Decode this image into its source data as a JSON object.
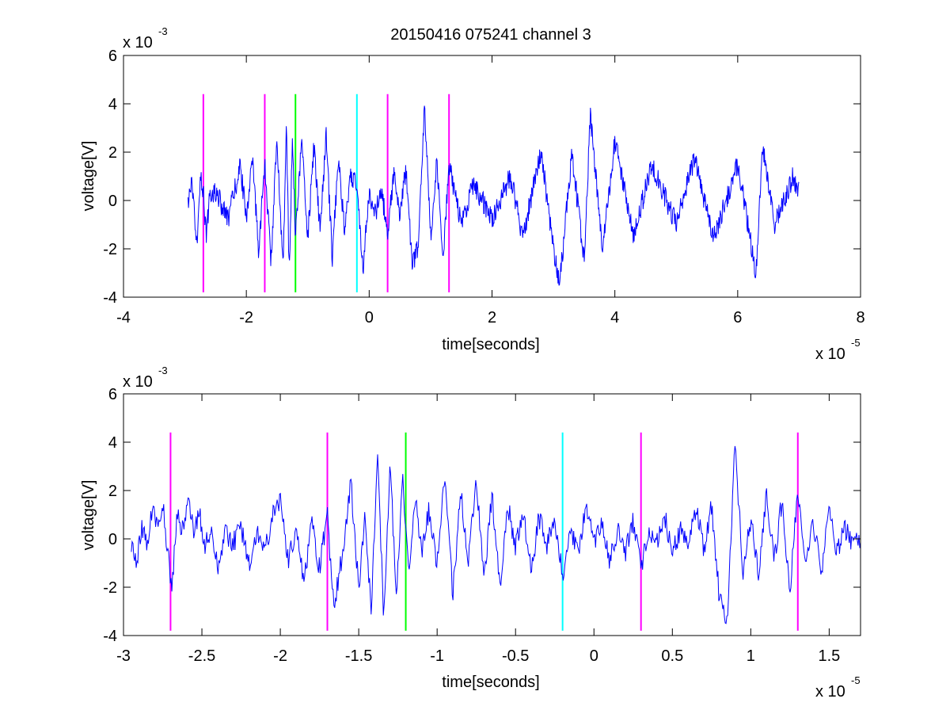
{
  "chart_data": [
    {
      "type": "line",
      "title": "20150416 075241 channel 3",
      "xlabel": "time[seconds]",
      "ylabel": "voltage[V]",
      "x_exponent_label": "x 10",
      "x_exponent": "-5",
      "y_exponent_label": "x 10",
      "y_exponent": "-3",
      "xlim": [
        -4,
        8
      ],
      "ylim": [
        -4,
        6
      ],
      "xticks": [
        -4,
        -2,
        0,
        2,
        4,
        6,
        8
      ],
      "xtick_labels": [
        "-4",
        "-2",
        "0",
        "2",
        "4",
        "6",
        "8"
      ],
      "yticks": [
        -4,
        -2,
        0,
        2,
        4,
        6
      ],
      "ytick_labels": [
        "-4",
        "-2",
        "0",
        "2",
        "4",
        "6"
      ],
      "grid": false,
      "series": [
        {
          "color": "#0000ff",
          "x_range": [
            -2.95,
            7.0
          ],
          "points_approx": [
            [
              -2.95,
              -0.3
            ],
            [
              -2.9,
              0.8
            ],
            [
              -2.85,
              -0.5
            ],
            [
              -2.8,
              -2.1
            ],
            [
              -2.75,
              1.2
            ],
            [
              -2.7,
              0.3
            ],
            [
              -2.65,
              -1.4
            ],
            [
              -2.6,
              0.1
            ],
            [
              -2.5,
              0.4
            ],
            [
              -2.3,
              -0.8
            ],
            [
              -2.1,
              1.4
            ],
            [
              -2.0,
              -0.6
            ],
            [
              -1.9,
              1.6
            ],
            [
              -1.8,
              -2.0
            ],
            [
              -1.7,
              1.5
            ],
            [
              -1.6,
              -2.5
            ],
            [
              -1.5,
              2.5
            ],
            [
              -1.4,
              -2.8
            ],
            [
              -1.35,
              3.5
            ],
            [
              -1.3,
              -3.3
            ],
            [
              -1.25,
              2.8
            ],
            [
              -1.2,
              -1.5
            ],
            [
              -1.1,
              2.5
            ],
            [
              -1.0,
              -1.5
            ],
            [
              -0.9,
              2.2
            ],
            [
              -0.8,
              -1.2
            ],
            [
              -0.7,
              2.6
            ],
            [
              -0.6,
              -2.4
            ],
            [
              -0.5,
              1.9
            ],
            [
              -0.4,
              -1.3
            ],
            [
              -0.3,
              1.0
            ],
            [
              -0.2,
              0.7
            ],
            [
              -0.1,
              -2.8
            ],
            [
              0.0,
              0.3
            ],
            [
              0.1,
              -0.6
            ],
            [
              0.2,
              0.5
            ],
            [
              0.3,
              -1.5
            ],
            [
              0.4,
              1.2
            ],
            [
              0.5,
              -0.8
            ],
            [
              0.6,
              1.4
            ],
            [
              0.7,
              -2.6
            ],
            [
              0.8,
              -2.0
            ],
            [
              0.9,
              3.9
            ],
            [
              1.0,
              -1.5
            ],
            [
              1.1,
              1.6
            ],
            [
              1.2,
              -2.5
            ],
            [
              1.3,
              1.5
            ],
            [
              1.5,
              -1.0
            ],
            [
              1.7,
              0.7
            ],
            [
              2.0,
              -0.8
            ],
            [
              2.3,
              1.0
            ],
            [
              2.5,
              -1.5
            ],
            [
              2.8,
              2.0
            ],
            [
              3.0,
              -2.0
            ],
            [
              3.1,
              -3.5
            ],
            [
              3.3,
              2.0
            ],
            [
              3.5,
              -2.5
            ],
            [
              3.6,
              3.5
            ],
            [
              3.8,
              -2.0
            ],
            [
              4.0,
              2.5
            ],
            [
              4.3,
              -1.5
            ],
            [
              4.6,
              1.5
            ],
            [
              5.0,
              -1.0
            ],
            [
              5.3,
              1.8
            ],
            [
              5.6,
              -1.6
            ],
            [
              6.0,
              1.5
            ],
            [
              6.3,
              -3.0
            ],
            [
              6.4,
              2.3
            ],
            [
              6.6,
              -1.0
            ],
            [
              6.9,
              1.0
            ],
            [
              7.0,
              0.3
            ]
          ]
        }
      ],
      "vertical_markers": [
        {
          "x": -2.7,
          "color": "#ff00ff"
        },
        {
          "x": -1.7,
          "color": "#ff00ff"
        },
        {
          "x": -1.2,
          "color": "#00ff00"
        },
        {
          "x": -0.2,
          "color": "#00ffff"
        },
        {
          "x": 0.3,
          "color": "#ff00ff"
        },
        {
          "x": 1.3,
          "color": "#ff00ff"
        }
      ],
      "marker_ylim": [
        -3.8,
        4.4
      ]
    },
    {
      "type": "line",
      "xlabel": "time[seconds]",
      "ylabel": "voltage[V]",
      "x_exponent_label": "x 10",
      "x_exponent": "-5",
      "y_exponent_label": "x 10",
      "y_exponent": "-3",
      "xlim": [
        -3.0,
        1.7
      ],
      "ylim": [
        -4,
        6
      ],
      "xticks": [
        -3,
        -2.5,
        -2,
        -1.5,
        -1,
        -0.5,
        0,
        0.5,
        1,
        1.5
      ],
      "xtick_labels": [
        "-3",
        "-2.5",
        "-2",
        "-1.5",
        "-1",
        "-0.5",
        "0",
        "0.5",
        "1",
        "1.5"
      ],
      "yticks": [
        -4,
        -2,
        0,
        2,
        4,
        6
      ],
      "ytick_labels": [
        "-4",
        "-2",
        "0",
        "2",
        "4",
        "6"
      ],
      "grid": false,
      "series": [
        {
          "color": "#0000ff",
          "x_range": [
            -2.95,
            1.7
          ],
          "points_approx": [
            [
              -2.95,
              -0.3
            ],
            [
              -2.92,
              -1.0
            ],
            [
              -2.88,
              0.5
            ],
            [
              -2.85,
              -0.2
            ],
            [
              -2.82,
              1.2
            ],
            [
              -2.78,
              0.4
            ],
            [
              -2.75,
              1.5
            ],
            [
              -2.72,
              -0.5
            ],
            [
              -2.69,
              -2.1
            ],
            [
              -2.66,
              1.0
            ],
            [
              -2.62,
              0.3
            ],
            [
              -2.58,
              1.7
            ],
            [
              -2.55,
              0.0
            ],
            [
              -2.52,
              1.3
            ],
            [
              -2.48,
              -0.4
            ],
            [
              -2.44,
              0.6
            ],
            [
              -2.4,
              -1.1
            ],
            [
              -2.35,
              0.3
            ],
            [
              -2.3,
              -0.2
            ],
            [
              -2.25,
              0.5
            ],
            [
              -2.2,
              -1.0
            ],
            [
              -2.15,
              0.2
            ],
            [
              -2.1,
              -0.6
            ],
            [
              -2.05,
              0.9
            ],
            [
              -2.0,
              1.6
            ],
            [
              -1.95,
              -0.9
            ],
            [
              -1.9,
              0.3
            ],
            [
              -1.85,
              -1.7
            ],
            [
              -1.8,
              0.6
            ],
            [
              -1.75,
              -1.2
            ],
            [
              -1.7,
              1.0
            ],
            [
              -1.66,
              -2.8
            ],
            [
              -1.6,
              -0.5
            ],
            [
              -1.55,
              2.4
            ],
            [
              -1.5,
              -2.1
            ],
            [
              -1.46,
              1.0
            ],
            [
              -1.42,
              -3.0
            ],
            [
              -1.38,
              3.5
            ],
            [
              -1.34,
              -3.3
            ],
            [
              -1.3,
              3.2
            ],
            [
              -1.26,
              -2.5
            ],
            [
              -1.22,
              2.6
            ],
            [
              -1.18,
              -1.8
            ],
            [
              -1.14,
              1.8
            ],
            [
              -1.1,
              -0.5
            ],
            [
              -1.05,
              1.2
            ],
            [
              -1.0,
              -1.1
            ],
            [
              -0.95,
              2.6
            ],
            [
              -0.9,
              -2.3
            ],
            [
              -0.85,
              1.9
            ],
            [
              -0.8,
              -0.8
            ],
            [
              -0.75,
              2.5
            ],
            [
              -0.7,
              -1.6
            ],
            [
              -0.65,
              1.8
            ],
            [
              -0.6,
              -2.0
            ],
            [
              -0.55,
              1.4
            ],
            [
              -0.5,
              -0.4
            ],
            [
              -0.45,
              1.1
            ],
            [
              -0.4,
              -1.4
            ],
            [
              -0.35,
              0.9
            ],
            [
              -0.3,
              -0.2
            ],
            [
              -0.25,
              0.6
            ],
            [
              -0.2,
              -1.5
            ],
            [
              -0.15,
              0.5
            ],
            [
              -0.1,
              -0.7
            ],
            [
              -0.05,
              1.6
            ],
            [
              0.0,
              -0.3
            ],
            [
              0.05,
              0.7
            ],
            [
              0.1,
              -0.9
            ],
            [
              0.15,
              0.3
            ],
            [
              0.2,
              -0.6
            ],
            [
              0.25,
              0.8
            ],
            [
              0.3,
              -1.3
            ],
            [
              0.35,
              0.4
            ],
            [
              0.4,
              -0.2
            ],
            [
              0.45,
              1.0
            ],
            [
              0.5,
              -0.6
            ],
            [
              0.55,
              0.4
            ],
            [
              0.6,
              -0.3
            ],
            [
              0.65,
              1.3
            ],
            [
              0.7,
              -0.4
            ],
            [
              0.75,
              1.4
            ],
            [
              0.8,
              -2.5
            ],
            [
              0.85,
              -3.4
            ],
            [
              0.9,
              3.9
            ],
            [
              0.95,
              -1.3
            ],
            [
              1.0,
              0.8
            ],
            [
              1.05,
              -1.5
            ],
            [
              1.1,
              1.8
            ],
            [
              1.15,
              -0.8
            ],
            [
              1.2,
              1.6
            ],
            [
              1.25,
              -2.2
            ],
            [
              1.3,
              2.0
            ],
            [
              1.35,
              -0.7
            ],
            [
              1.4,
              0.6
            ],
            [
              1.45,
              -1.3
            ],
            [
              1.5,
              1.2
            ],
            [
              1.55,
              -0.5
            ],
            [
              1.6,
              0.4
            ],
            [
              1.65,
              -0.2
            ],
            [
              1.7,
              0.0
            ]
          ]
        }
      ],
      "vertical_markers": [
        {
          "x": -2.7,
          "color": "#ff00ff"
        },
        {
          "x": -1.7,
          "color": "#ff00ff"
        },
        {
          "x": -1.2,
          "color": "#00ff00"
        },
        {
          "x": -0.2,
          "color": "#00ffff"
        },
        {
          "x": 0.3,
          "color": "#ff00ff"
        },
        {
          "x": 1.3,
          "color": "#ff00ff"
        }
      ],
      "marker_ylim": [
        -3.8,
        4.4
      ]
    }
  ]
}
